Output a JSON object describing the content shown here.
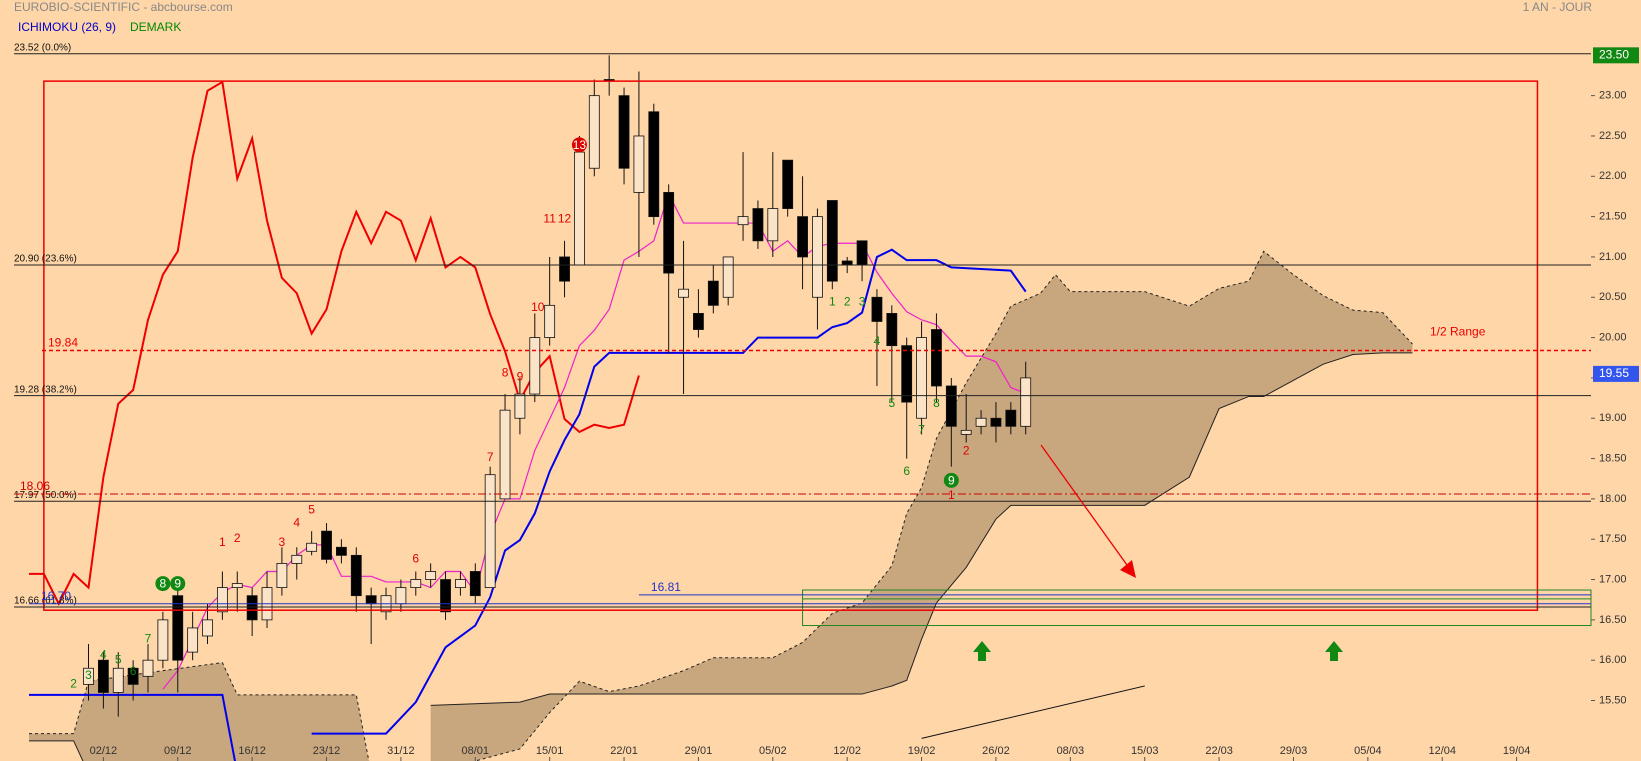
{
  "chart_data": {
    "type": "candlestick",
    "title": "EUROBIO-SCIENTIFIC - abcbourse.com",
    "period": "1 AN - JOUR",
    "indicators": [
      {
        "name": "ICHIMOKU (26, 9)",
        "color": "#0000cc"
      },
      {
        "name": "DEMARK",
        "color": "#008800"
      }
    ],
    "xlim": [
      0,
      105
    ],
    "xticks": [
      {
        "value": 5,
        "label": "02/12"
      },
      {
        "value": 10,
        "label": "09/12"
      },
      {
        "value": 15,
        "label": "16/12"
      },
      {
        "value": 20,
        "label": "23/12"
      },
      {
        "value": 25,
        "label": "31/12"
      },
      {
        "value": 30,
        "label": "08/01"
      },
      {
        "value": 35,
        "label": "15/01"
      },
      {
        "value": 40,
        "label": "22/01"
      },
      {
        "value": 45,
        "label": "29/01"
      },
      {
        "value": 50,
        "label": "05/02"
      },
      {
        "value": 55,
        "label": "12/02"
      },
      {
        "value": 60,
        "label": "19/02"
      },
      {
        "value": 65,
        "label": "26/02"
      },
      {
        "value": 70,
        "label": "08/03"
      },
      {
        "value": 75,
        "label": "15/03"
      },
      {
        "value": 80,
        "label": "22/03"
      },
      {
        "value": 85,
        "label": "29/03"
      },
      {
        "value": 90,
        "label": "05/04"
      },
      {
        "value": 95,
        "label": "12/04"
      },
      {
        "value": 100,
        "label": "19/04"
      }
    ],
    "ylim": [
      14.75,
      24.0
    ],
    "yticks": [
      {
        "value": 15.5,
        "label": "15.50"
      },
      {
        "value": 16,
        "label": "16.00"
      },
      {
        "value": 16.5,
        "label": "16.50"
      },
      {
        "value": 17,
        "label": "17.00"
      },
      {
        "value": 17.5,
        "label": "17.50"
      },
      {
        "value": 18,
        "label": "18.00"
      },
      {
        "value": 18.5,
        "label": "18.50"
      },
      {
        "value": 19,
        "label": "19.00"
      },
      {
        "value": 19.5,
        "label": "19.50"
      },
      {
        "value": 20,
        "label": "20.00"
      },
      {
        "value": 20.5,
        "label": "20.50"
      },
      {
        "value": 21,
        "label": "21.00"
      },
      {
        "value": 21.5,
        "label": "21.50"
      },
      {
        "value": 22,
        "label": "22.00"
      },
      {
        "value": 22.5,
        "label": "22.50"
      },
      {
        "value": 23,
        "label": "23.00"
      }
    ],
    "candles": {
      "x": [
        4,
        5,
        6,
        7,
        8,
        9,
        10,
        11,
        12,
        13,
        14,
        15,
        16,
        17,
        18,
        19,
        20,
        21,
        22,
        23,
        24,
        25,
        26,
        27,
        28,
        29,
        30,
        31,
        32,
        33,
        34,
        35,
        36,
        37,
        38,
        39,
        40,
        41,
        42,
        43,
        44,
        45,
        46,
        47,
        48,
        49,
        50,
        51,
        52,
        53,
        54,
        55,
        56,
        57,
        58,
        59,
        60,
        61,
        62,
        63,
        64,
        65,
        66,
        67
      ],
      "open": [
        15.7,
        16.0,
        15.6,
        15.9,
        15.8,
        16.0,
        16.8,
        16.1,
        16.3,
        16.6,
        16.9,
        16.8,
        16.5,
        16.9,
        17.2,
        17.35,
        17.6,
        17.4,
        17.3,
        16.8,
        16.6,
        16.7,
        16.9,
        17.0,
        17.0,
        16.9,
        17.1,
        16.9,
        18.0,
        19.0,
        19.3,
        20.0,
        21.0,
        20.9,
        22.1,
        23.2,
        23.0,
        21.8,
        22.8,
        21.8,
        20.5,
        20.3,
        20.7,
        20.5,
        21.4,
        21.6,
        21.2,
        22.2,
        21.5,
        20.5,
        21.7,
        20.95,
        21.2,
        20.5,
        20.3,
        19.9,
        19.0,
        20.1,
        19.4,
        18.8,
        18.9,
        19.0,
        19.1,
        18.9
      ],
      "high": [
        16.2,
        16.1,
        16.1,
        16.0,
        16.2,
        16.6,
        16.9,
        16.6,
        16.7,
        17.1,
        17.1,
        16.9,
        17.1,
        17.4,
        17.4,
        17.6,
        17.7,
        17.5,
        17.4,
        16.9,
        16.9,
        17.0,
        17.1,
        17.2,
        17.1,
        17.1,
        17.2,
        18.4,
        19.3,
        19.5,
        20.3,
        21.0,
        21.2,
        22.5,
        23.2,
        23.5,
        23.1,
        23.3,
        22.9,
        21.9,
        21.2,
        20.6,
        20.9,
        21.0,
        22.3,
        21.7,
        22.3,
        22.2,
        22.0,
        21.6,
        21.7,
        21.0,
        21.2,
        20.6,
        20.4,
        20.0,
        20.2,
        20.3,
        19.5,
        19.3,
        19.1,
        19.2,
        19.2,
        19.7
      ],
      "low": [
        15.5,
        15.4,
        15.3,
        15.5,
        15.6,
        15.9,
        15.6,
        16.0,
        16.2,
        16.5,
        16.6,
        16.3,
        16.4,
        16.8,
        17.0,
        17.3,
        17.2,
        17.2,
        16.6,
        16.2,
        16.5,
        16.6,
        16.8,
        16.9,
        16.5,
        16.8,
        16.7,
        16.9,
        18.4,
        18.8,
        19.2,
        19.9,
        20.5,
        21.5,
        22.0,
        23.0,
        21.9,
        21.0,
        21.4,
        19.8,
        19.3,
        20.0,
        20.3,
        20.4,
        21.2,
        21.1,
        21.0,
        21.5,
        20.6,
        20.1,
        20.6,
        20.8,
        20.7,
        19.4,
        19.2,
        18.5,
        18.8,
        19.2,
        18.4,
        18.7,
        18.8,
        18.7,
        18.8,
        18.8
      ],
      "close": [
        15.9,
        15.6,
        15.9,
        15.7,
        16.0,
        16.5,
        16.0,
        16.4,
        16.5,
        16.9,
        16.95,
        16.5,
        16.9,
        17.2,
        17.3,
        17.45,
        17.25,
        17.3,
        16.8,
        16.7,
        16.8,
        16.9,
        17.0,
        17.1,
        16.6,
        17.0,
        16.8,
        18.3,
        19.1,
        19.3,
        20.0,
        20.4,
        20.7,
        22.3,
        23.0,
        23.18,
        22.1,
        22.5,
        21.5,
        20.8,
        20.6,
        20.1,
        20.4,
        21.0,
        21.5,
        21.2,
        21.6,
        21.6,
        21.0,
        21.5,
        20.7,
        20.9,
        20.9,
        20.2,
        19.9,
        19.2,
        20.0,
        19.4,
        18.9,
        18.85,
        19.0,
        18.9,
        18.9,
        19.5
      ]
    },
    "lines": [
      {
        "color": "#ee0000",
        "width": 2,
        "x": [
          0,
          1,
          2,
          3,
          4,
          5,
          6,
          7,
          8,
          9,
          10,
          11,
          12,
          13,
          14,
          15,
          16,
          17,
          18,
          19,
          20,
          21,
          22,
          23,
          24,
          25,
          26,
          27,
          28,
          29,
          30,
          31,
          32,
          33,
          34,
          35,
          36,
          37,
          38,
          39,
          40,
          41
        ],
        "values": [
          17.07,
          17.07,
          16.7,
          17.07,
          16.9,
          18.27,
          19.18,
          19.35,
          20.22,
          20.78,
          21.07,
          22.23,
          23.06,
          23.17,
          21.97,
          22.47,
          21.45,
          20.74,
          20.55,
          20.05,
          20.35,
          21.07,
          21.56,
          21.17,
          21.56,
          21.45,
          20.96,
          21.48,
          20.87,
          21.0,
          20.87,
          20.29,
          19.83,
          19.22,
          19.57,
          19.77,
          18.99,
          18.83,
          18.92,
          18.88,
          18.92,
          19.53
        ]
      },
      {
        "color": "#ee22cc",
        "width": 1.2,
        "x": [
          9,
          10,
          11,
          12,
          13,
          14,
          15,
          16,
          17,
          18,
          19,
          20,
          21,
          22,
          23,
          24,
          25,
          26,
          27,
          28,
          29,
          30,
          31,
          32,
          33,
          34,
          35,
          36,
          37,
          38,
          39,
          40,
          41,
          42,
          43,
          44,
          49,
          50,
          51,
          52,
          53,
          54,
          56,
          57,
          58,
          59,
          60,
          61,
          62,
          63,
          64,
          65,
          66,
          67
        ],
        "values": [
          15.64,
          15.87,
          16.26,
          16.65,
          16.84,
          16.94,
          16.9,
          17.1,
          17.1,
          17.3,
          17.43,
          17.43,
          17.04,
          17.04,
          17.04,
          16.97,
          16.97,
          16.97,
          16.9,
          17.1,
          17.1,
          16.84,
          17.55,
          18.0,
          18.0,
          18.6,
          18.99,
          19.38,
          19.9,
          20.09,
          20.35,
          20.96,
          21.07,
          21.2,
          21.78,
          21.42,
          21.42,
          21.07,
          21.2,
          21.0,
          21.13,
          21.17,
          21.17,
          20.81,
          20.55,
          20.32,
          20.22,
          20.16,
          19.96,
          19.77,
          19.77,
          19.7,
          19.38,
          19.31
        ]
      },
      {
        "color": "#0000ee",
        "width": 2,
        "x": [
          0,
          13,
          14,
          16,
          19,
          24,
          26,
          28,
          30,
          31,
          32,
          33,
          34,
          35,
          36,
          37,
          38,
          39,
          48,
          49,
          53,
          54,
          55,
          56,
          57,
          58,
          59,
          61,
          62,
          66,
          67
        ],
        "values": [
          15.57,
          15.57,
          14.6,
          null,
          15.09,
          15.09,
          15.48,
          16.16,
          16.43,
          16.78,
          17.36,
          17.49,
          17.82,
          18.34,
          18.73,
          19.05,
          19.64,
          19.81,
          19.81,
          20.0,
          20.0,
          20.13,
          20.18,
          20.31,
          21.0,
          21.09,
          20.96,
          20.96,
          20.87,
          20.83,
          20.57
        ]
      },
      {
        "color": "#111111",
        "width": 1,
        "x": [
          60,
          75
        ],
        "values": [
          15.03,
          15.68
        ]
      }
    ],
    "cloud": [
      {
        "x": [
          0,
          3,
          4,
          9,
          13,
          14,
          22,
          23
        ],
        "span_a": [
          15.09,
          15.09,
          15.74,
          15.87,
          15.97,
          15.57,
          15.57,
          14.6
        ],
        "span_b": [
          15.0,
          15.0,
          14.6,
          14.6,
          14.6,
          14.6,
          14.6,
          14.6
        ]
      },
      {
        "x": [
          27,
          33,
          35,
          37,
          39,
          41,
          44,
          46,
          50,
          52,
          54,
          56,
          58,
          59,
          60,
          61,
          63,
          65,
          66,
          68,
          69,
          70,
          75,
          78,
          80,
          82,
          83,
          85,
          87,
          89,
          91,
          93
        ],
        "span_a": [
          14.6,
          14.9,
          15.35,
          15.74,
          15.61,
          15.68,
          15.87,
          16.03,
          16.03,
          16.22,
          16.58,
          16.71,
          17.17,
          17.82,
          18.14,
          18.75,
          19.44,
          20.05,
          20.39,
          20.55,
          20.78,
          20.57,
          20.57,
          20.39,
          20.61,
          20.7,
          21.07,
          20.78,
          20.52,
          20.34,
          20.31,
          19.92
        ],
        "span_b": [
          15.44,
          15.48,
          15.58,
          15.58,
          15.58,
          15.58,
          15.58,
          15.58,
          15.58,
          15.58,
          15.58,
          15.58,
          15.68,
          15.75,
          16.26,
          16.71,
          17.15,
          17.75,
          17.92,
          17.92,
          17.92,
          17.92,
          17.92,
          18.27,
          19.12,
          19.27,
          19.27,
          19.47,
          19.67,
          19.79,
          19.81,
          19.81
        ]
      }
    ],
    "cloud_color": "#c9a77e",
    "levels": [
      {
        "value": 23.52,
        "label": "23.52  (0.0%)"
      },
      {
        "value": 20.9,
        "label": "20.90  (23.6%)"
      },
      {
        "value": 19.28,
        "label": "19.28  (38.2%)"
      },
      {
        "value": 17.97,
        "label": "17.97  (50.0%)"
      },
      {
        "value": 16.66,
        "label": "16.66  (61.8%)"
      }
    ],
    "range_box": {
      "top": 23.18,
      "bottom": 16.62,
      "x": [
        1,
        101.4
      ],
      "color": "#ee0000"
    },
    "half_range": {
      "value": 19.84,
      "label": "1/2 Range",
      "color": "#ee0000"
    },
    "red_level": {
      "value": 18.06,
      "color": "#cc0000"
    },
    "blue_levels": [
      {
        "value": 16.7,
        "label": "16.70",
        "x": 0
      },
      {
        "value": 16.81,
        "x": 41
      }
    ],
    "green_zone": {
      "top": 16.87,
      "bottom": 16.43,
      "inner": 16.76,
      "x": 52,
      "color": "#228822"
    },
    "price_tags": [
      {
        "value": 23.5,
        "label": "23.50",
        "color": "#118811"
      },
      {
        "value": 19.55,
        "label": "19.55",
        "color": "#3355ee"
      }
    ],
    "demark": [
      {
        "text": "2",
        "x": 3,
        "y": 15.71,
        "color": "#118811"
      },
      {
        "text": "3",
        "x": 4,
        "y": 15.82,
        "color": "#118811"
      },
      {
        "text": "4",
        "x": 5,
        "y": 16.07,
        "color": "#118811"
      },
      {
        "text": "5",
        "x": 6,
        "y": 16.01,
        "color": "#118811"
      },
      {
        "text": "6",
        "x": 7,
        "y": 15.87,
        "color": "#118811"
      },
      {
        "text": "7",
        "x": 8,
        "y": 16.27,
        "color": "#118811"
      },
      {
        "text": "8",
        "x": 9,
        "y": 16.95,
        "color": "#118811",
        "circle": true
      },
      {
        "text": "9",
        "x": 10,
        "y": 16.95,
        "color": "#118811",
        "circle": true
      },
      {
        "text": "1",
        "x": 13,
        "y": 17.47,
        "color": "#dd0000"
      },
      {
        "text": "2",
        "x": 14,
        "y": 17.52,
        "color": "#dd0000"
      },
      {
        "text": "3",
        "x": 17,
        "y": 17.47,
        "color": "#dd0000"
      },
      {
        "text": "4",
        "x": 18,
        "y": 17.71,
        "color": "#dd0000"
      },
      {
        "text": "5",
        "x": 19,
        "y": 17.87,
        "color": "#dd0000"
      },
      {
        "text": "6",
        "x": 26,
        "y": 17.26,
        "color": "#dd0000"
      },
      {
        "text": "7",
        "x": 31,
        "y": 18.52,
        "color": "#dd0000"
      },
      {
        "text": "8",
        "x": 32,
        "y": 19.57,
        "color": "#dd0000"
      },
      {
        "text": "9",
        "x": 33,
        "y": 19.52,
        "color": "#dd0000"
      },
      {
        "text": "10",
        "x": 34.2,
        "y": 20.38,
        "color": "#dd0000"
      },
      {
        "text": "11",
        "x": 35,
        "y": 21.48,
        "color": "#dd0000"
      },
      {
        "text": "12",
        "x": 36,
        "y": 21.48,
        "color": "#dd0000"
      },
      {
        "text": "13",
        "x": 37,
        "y": 22.39,
        "color": "#dd0000",
        "circle": true
      },
      {
        "text": "1",
        "x": 54,
        "y": 20.45,
        "color": "#118811"
      },
      {
        "text": "2",
        "x": 55,
        "y": 20.45,
        "color": "#118811"
      },
      {
        "text": "3",
        "x": 56,
        "y": 20.45,
        "color": "#118811"
      },
      {
        "text": "4",
        "x": 57,
        "y": 19.96,
        "color": "#118811"
      },
      {
        "text": "5",
        "x": 58,
        "y": 19.19,
        "color": "#118811"
      },
      {
        "text": "6",
        "x": 59,
        "y": 18.35,
        "color": "#118811"
      },
      {
        "text": "7",
        "x": 60,
        "y": 18.86,
        "color": "#118811"
      },
      {
        "text": "8",
        "x": 61,
        "y": 19.19,
        "color": "#118811"
      },
      {
        "text": "9",
        "x": 62,
        "y": 18.23,
        "color": "#118811",
        "circle": true
      },
      {
        "text": "2",
        "x": 63,
        "y": 18.6,
        "color": "#dd0000"
      },
      {
        "text": "1",
        "x": 62,
        "y": 18.05,
        "color": "#dd0000"
      }
    ]
  }
}
